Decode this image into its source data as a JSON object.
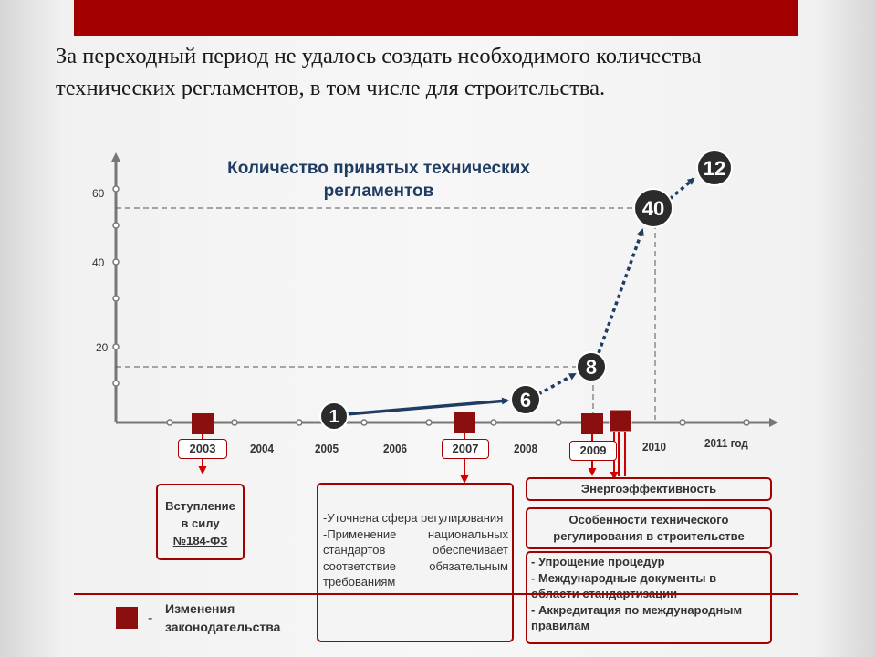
{
  "intro_text": "За переходный период не удалось создать необходимого количества технических регламентов, в том числе для строительства.",
  "chart": {
    "title": "Количество принятых технических регламентов",
    "y_ticks": [
      "20",
      "40",
      "60"
    ],
    "years_plain": [
      "2004",
      "2005",
      "2006",
      "2008",
      "2010",
      "2011 год"
    ],
    "years_boxed": [
      "2003",
      "2007",
      "2009"
    ],
    "markers": [
      "1",
      "6",
      "8",
      "40",
      "12"
    ]
  },
  "chart_data": {
    "type": "line",
    "title": "Количество принятых технических регламентов",
    "x": [
      "2005",
      "2008",
      "2009",
      "2010",
      "2011"
    ],
    "series": [
      {
        "values": [
          1,
          6,
          8,
          40,
          12
        ]
      }
    ],
    "xlabel": "год",
    "y_tick_labels": [
      20,
      40,
      60
    ],
    "x_tick_labels": [
      "2003",
      "2004",
      "2005",
      "2006",
      "2007",
      "2008",
      "2009",
      "2010",
      "2011 год"
    ],
    "grid": false
  },
  "boxes": {
    "law_2003": {
      "line1": "Вступление",
      "line2": "в силу",
      "line3": "№184-ФЗ"
    },
    "changes_2007": [
      "-Уточнена сфера регулирования",
      "-Применение национальных стандартов обеспечивает соответствие обязательным требованиям"
    ],
    "energy": "Энергоэффективность",
    "features": "Особенности технического регулирования в строительстве",
    "list_2009": [
      "- Упрощение процедур",
      "- Международные документы в области стандартизации",
      "- Аккредитация по международным правилам"
    ]
  },
  "legend": {
    "dash": "-",
    "text": "Изменения законодательства"
  },
  "colors": {
    "accent": "#a30000",
    "marker": "#8c0f0f",
    "navy": "#1f3c63",
    "circle": "#2b2b2b"
  }
}
